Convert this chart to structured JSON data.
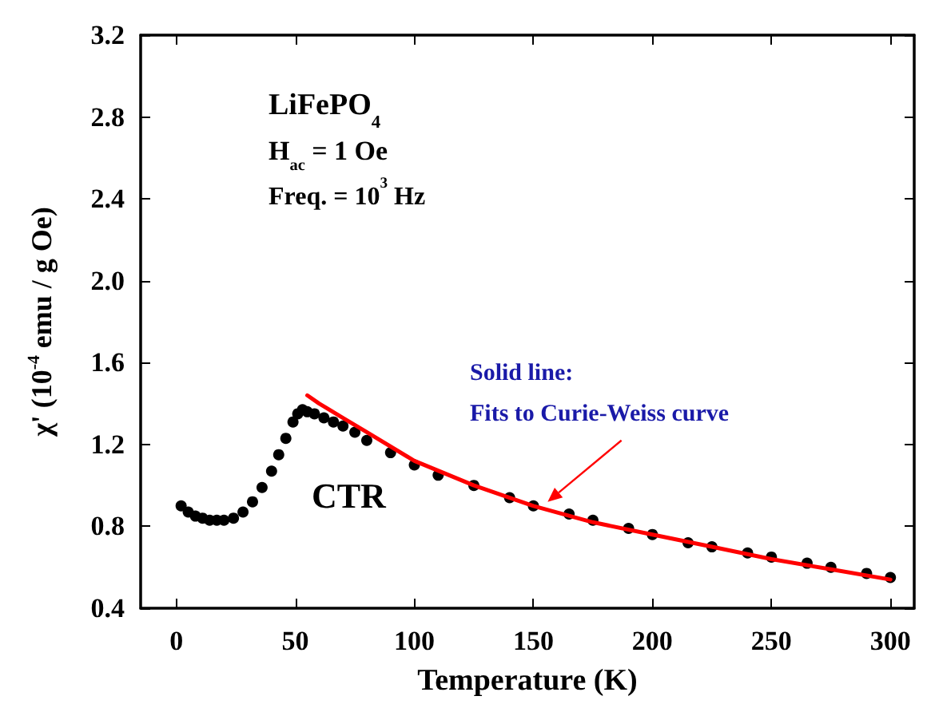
{
  "chart_data": {
    "type": "scatter",
    "xlabel": "Temperature (K)",
    "ylabel": "χ' (10$^{-4}$ emu / g Oe)",
    "xlim": [
      -15,
      310
    ],
    "xticks": [
      0,
      50,
      100,
      150,
      200,
      250,
      300
    ],
    "ylim": [
      0.4,
      3.2
    ],
    "yticks": [
      0.4,
      0.8,
      1.2,
      1.6,
      {
        "value": 2,
        "label": "2.0"
      },
      2.4,
      2.8,
      3.2
    ],
    "marker": "circle",
    "series": [
      {
        "color": "#000000",
        "x": [
          2,
          5,
          8,
          11,
          14,
          17,
          20,
          24,
          28,
          32,
          36,
          40,
          43,
          46,
          49,
          51,
          53,
          55,
          58,
          62,
          66,
          70,
          75,
          80,
          90,
          100,
          110,
          125,
          140,
          150,
          165,
          175,
          190,
          200,
          215,
          225,
          240,
          250,
          265,
          275,
          290,
          300
        ],
        "values": [
          0.9,
          0.87,
          0.85,
          0.84,
          0.83,
          0.83,
          0.83,
          0.84,
          0.87,
          0.92,
          0.99,
          1.07,
          1.15,
          1.23,
          1.31,
          1.35,
          1.37,
          1.36,
          1.35,
          1.33,
          1.31,
          1.29,
          1.26,
          1.22,
          1.16,
          1.1,
          1.05,
          1.0,
          0.94,
          0.9,
          0.86,
          0.83,
          0.79,
          0.76,
          0.72,
          0.7,
          0.67,
          0.65,
          0.62,
          0.6,
          0.57,
          0.55
        ]
      },
      {
        "type": "line",
        "color": "#ff0000",
        "marker": "none",
        "x": [
          55,
          60,
          70,
          80,
          100,
          125,
          150,
          175,
          200,
          225,
          250,
          275,
          300
        ],
        "values": [
          1.44,
          1.4,
          1.33,
          1.26,
          1.12,
          1.0,
          0.9,
          0.82,
          0.76,
          0.7,
          0.64,
          0.59,
          0.54
        ]
      }
    ],
    "annotations": [
      "LiFePO$_{4}$",
      "H$_{ac}$ = 1 Oe",
      "Freq. = 10$^{3}$ Hz",
      {
        "text": "Solid line:\nFits to Curie-Weiss curve",
        "x": 156,
        "y": 0.92
      },
      "CTR"
    ]
  }
}
